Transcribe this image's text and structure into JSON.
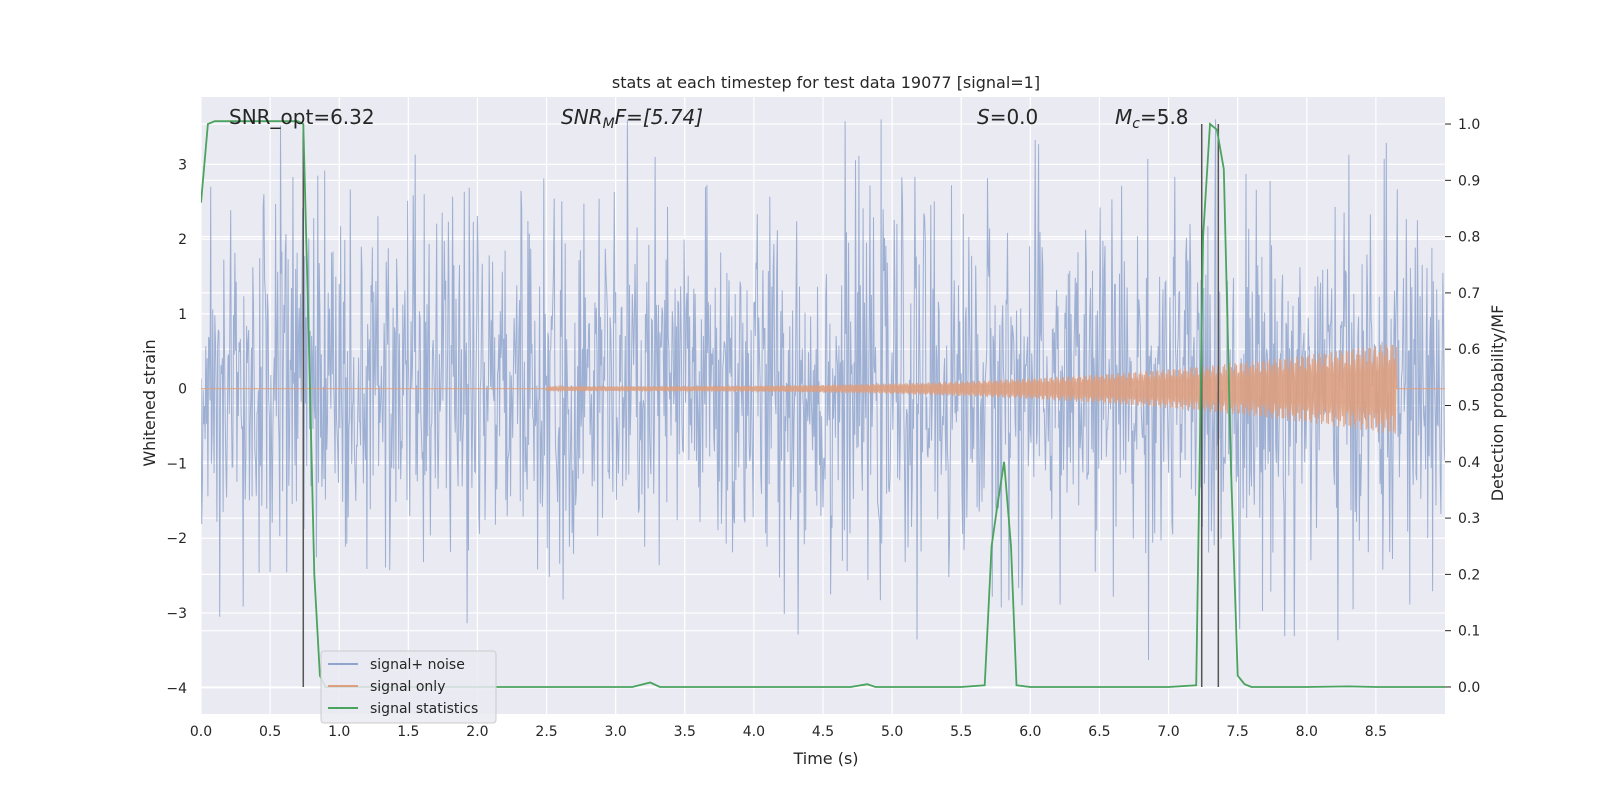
{
  "chart_data": {
    "type": "line",
    "title": "stats at each timestep for test data 19077 [signal=1]",
    "xlabel": "Time (s)",
    "ylabel_left": "Whitened strain",
    "ylabel_right": "Detection probability/MF",
    "xlim": [
      0.0,
      9.0
    ],
    "ylim_left": [
      -4.35,
      3.9
    ],
    "ylim_right": [
      -0.048,
      1.048
    ],
    "x_ticks": [
      "0.0",
      "0.5",
      "1.0",
      "1.5",
      "2.0",
      "2.5",
      "3.0",
      "3.5",
      "4.0",
      "4.5",
      "5.0",
      "5.5",
      "6.0",
      "6.5",
      "7.0",
      "7.5",
      "8.0",
      "8.5"
    ],
    "y_ticks_left": [
      "3",
      "2",
      "1",
      "0",
      "−1",
      "−2",
      "−3",
      "−4"
    ],
    "y_ticks_right": [
      "1.0",
      "0.9",
      "0.8",
      "0.7",
      "0.6",
      "0.5",
      "0.4",
      "0.3",
      "0.2",
      "0.1",
      "0.0"
    ],
    "grid": true,
    "legend_position": "lower-left",
    "annotations": {
      "snr_opt": "SNR_opt=6.32",
      "snr_mf_main": "SNR",
      "snr_mf_sub": "M",
      "snr_mf_rest": "F=[5.74]",
      "s_main": "S",
      "s_rest": "=0.0",
      "mc_main": "M",
      "mc_sub": "c",
      "mc_rest": "=5.8"
    },
    "vertical_lines_x": [
      0.74,
      7.24,
      7.36
    ],
    "series": [
      {
        "name": "signal+ noise",
        "axis": "left",
        "color": "#8fa4cc",
        "description_values": {
          "approx_range": [
            -4.0,
            3.6
          ],
          "mean": 0.0,
          "std": 1.2
        }
      },
      {
        "name": "signal only",
        "axis": "left",
        "color": "#dd9f80",
        "chirp": {
          "start_time": 2.5,
          "end_time": 8.65,
          "peak_amplitude": 0.62
        }
      },
      {
        "name": "signal statistics",
        "axis": "right",
        "color": "#4aa35e",
        "x": [
          0.0,
          0.05,
          0.1,
          0.2,
          0.3,
          0.4,
          0.5,
          0.6,
          0.7,
          0.74,
          0.78,
          0.82,
          0.86,
          0.9,
          0.95,
          1.0,
          1.5,
          2.0,
          2.5,
          3.0,
          3.12,
          3.25,
          3.32,
          3.5,
          4.0,
          4.5,
          4.7,
          4.82,
          4.88,
          5.0,
          5.5,
          5.67,
          5.72,
          5.76,
          5.81,
          5.86,
          5.9,
          6.0,
          6.5,
          7.0,
          7.2,
          7.25,
          7.3,
          7.35,
          7.4,
          7.45,
          7.5,
          7.55,
          7.6,
          7.7,
          8.0,
          8.3,
          8.5,
          9.0
        ],
        "values": [
          0.86,
          1.0,
          1.005,
          1.005,
          1.005,
          1.005,
          1.005,
          1.005,
          1.005,
          1.0,
          0.62,
          0.2,
          0.02,
          0.0,
          0.0,
          0.0,
          0.0,
          0.0,
          0.0,
          0.0,
          0.0,
          0.008,
          0.0,
          0.0,
          0.0,
          0.0,
          0.0,
          0.005,
          0.0,
          0.0,
          0.0,
          0.003,
          0.25,
          0.32,
          0.4,
          0.25,
          0.003,
          0.0,
          0.0,
          0.0,
          0.003,
          0.8,
          1.0,
          0.99,
          0.92,
          0.4,
          0.02,
          0.005,
          0.0,
          0.0,
          0.0,
          0.001,
          0.0,
          0.0
        ]
      }
    ]
  }
}
